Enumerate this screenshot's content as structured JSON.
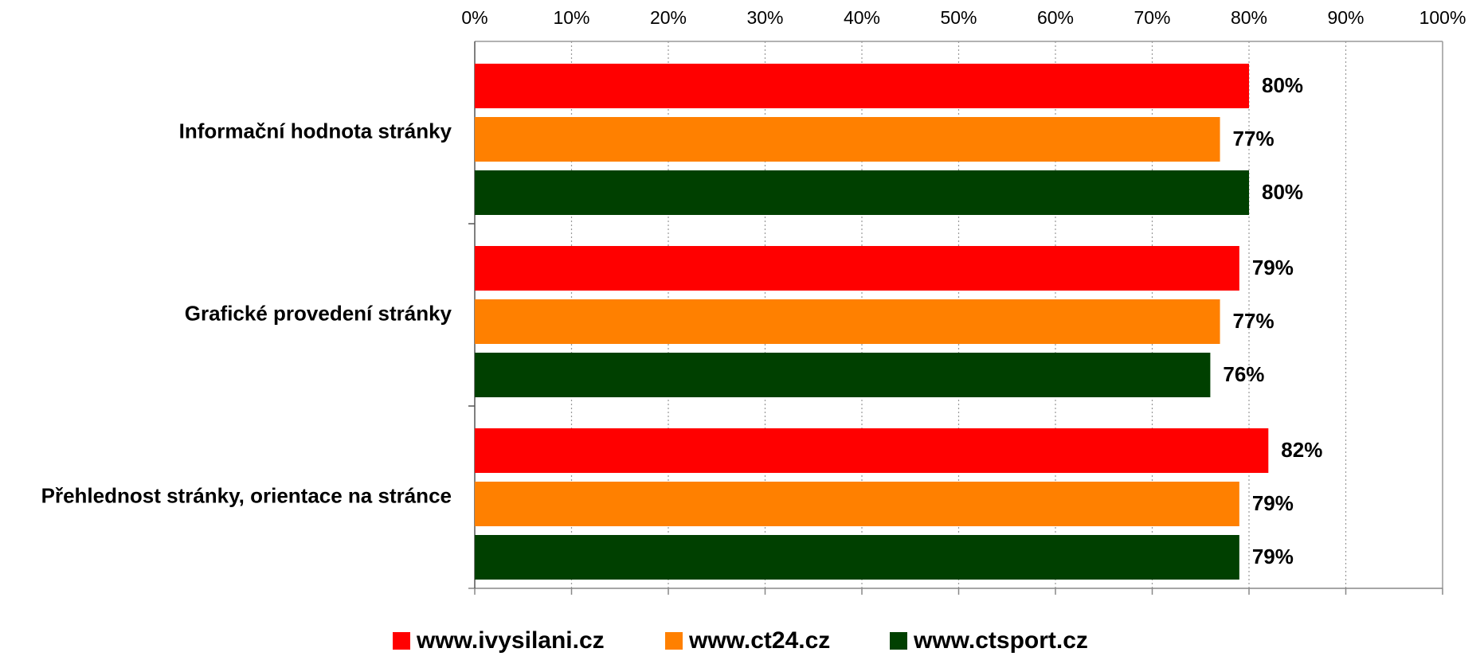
{
  "chart_data": {
    "type": "hbar",
    "categories": [
      "Informační hodnota stránky",
      "Grafické provedení stránky",
      "Přehlednost stránky, orientace na stránce"
    ],
    "series": [
      {
        "name": "www.ivysilani.cz",
        "color": "#ff0000",
        "values": [
          80,
          79,
          82
        ],
        "value_labels": [
          "80%",
          "79%",
          "82%"
        ]
      },
      {
        "name": "www.ct24.cz",
        "color": "#ff8000",
        "values": [
          77,
          77,
          79
        ],
        "value_labels": [
          "77%",
          "77%",
          "79%"
        ]
      },
      {
        "name": "www.ctsport.cz",
        "color": "#004000",
        "values": [
          80,
          76,
          79
        ],
        "value_labels": [
          "80%",
          "76%",
          "79%"
        ]
      }
    ],
    "xlim": [
      0,
      100
    ],
    "xticks": [
      {
        "value": 0,
        "label": "0%"
      },
      {
        "value": 10,
        "label": "10%"
      },
      {
        "value": 20,
        "label": "20%"
      },
      {
        "value": 30,
        "label": "30%"
      },
      {
        "value": 40,
        "label": "40%"
      },
      {
        "value": 50,
        "label": "50%"
      },
      {
        "value": 60,
        "label": "60%"
      },
      {
        "value": 70,
        "label": "70%"
      },
      {
        "value": 80,
        "label": "80%"
      },
      {
        "value": 90,
        "label": "90%"
      },
      {
        "value": 100,
        "label": "100%"
      }
    ],
    "grid": true,
    "legend": "bottom"
  }
}
